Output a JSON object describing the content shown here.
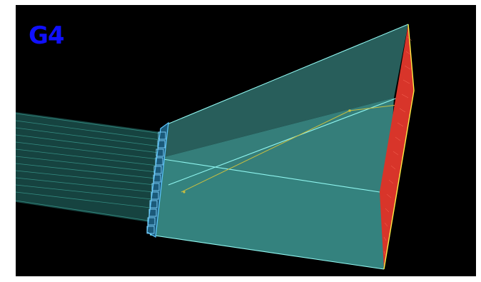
{
  "viewer": {
    "logo_text": "G4",
    "logo_color": "#1010ff",
    "background_color": "#000000"
  },
  "colors": {
    "fiber_bundle": "#2f8a80",
    "fiber_edge": "#56d9c8",
    "horn_fill": "#3c8f8a",
    "horn_edge": "#7ff3ee",
    "coupler": "#5ec8ff",
    "sensor_face": "#e0322a",
    "sensor_rim": "#ffee44",
    "track": "#b8b040"
  }
}
